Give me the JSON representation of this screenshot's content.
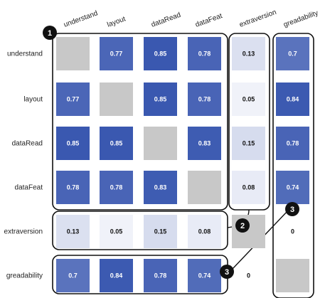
{
  "chart_data": {
    "type": "heatmap",
    "rows": [
      "understand",
      "layout",
      "dataRead",
      "dataFeat",
      "extraversion",
      "greadability"
    ],
    "columns": [
      "understand",
      "layout",
      "dataRead",
      "dataFeat",
      "extraversion",
      "greadability"
    ],
    "values": [
      [
        null,
        0.77,
        0.85,
        0.78,
        0.13,
        0.7
      ],
      [
        0.77,
        null,
        0.85,
        0.78,
        0.05,
        0.84
      ],
      [
        0.85,
        0.85,
        null,
        0.83,
        0.15,
        0.78
      ],
      [
        0.78,
        0.78,
        0.83,
        null,
        0.08,
        0.74
      ],
      [
        0.13,
        0.05,
        0.15,
        0.08,
        null,
        0
      ],
      [
        0.7,
        0.84,
        0.78,
        0.74,
        0,
        null
      ]
    ],
    "labels": [
      [
        "",
        "0.77",
        "0.85",
        "0.78",
        "0.13",
        "0.7"
      ],
      [
        "0.77",
        "",
        "0.85",
        "0.78",
        "0.05",
        "0.84"
      ],
      [
        "0.85",
        "0.85",
        "",
        "0.83",
        "0.15",
        "0.78"
      ],
      [
        "0.78",
        "0.78",
        "0.83",
        "",
        "0.08",
        "0.74"
      ],
      [
        "0.13",
        "0.05",
        "0.15",
        "0.08",
        "",
        "0"
      ],
      [
        "0.7",
        "0.84",
        "0.78",
        "0.74",
        "0",
        ""
      ]
    ],
    "diagonal_color": "#c8c8c8",
    "color_scale": [
      "#ffffff",
      "#3a58b0"
    ],
    "annotations": [
      {
        "label": "1",
        "covers": "rows 1-4, columns 1-4"
      },
      {
        "label": "2",
        "covers": "row 5, columns 1-4; column 5, rows 1-4"
      },
      {
        "label": "3",
        "covers": "row 6, columns 1-4; column 6, rows 1-4"
      }
    ]
  }
}
